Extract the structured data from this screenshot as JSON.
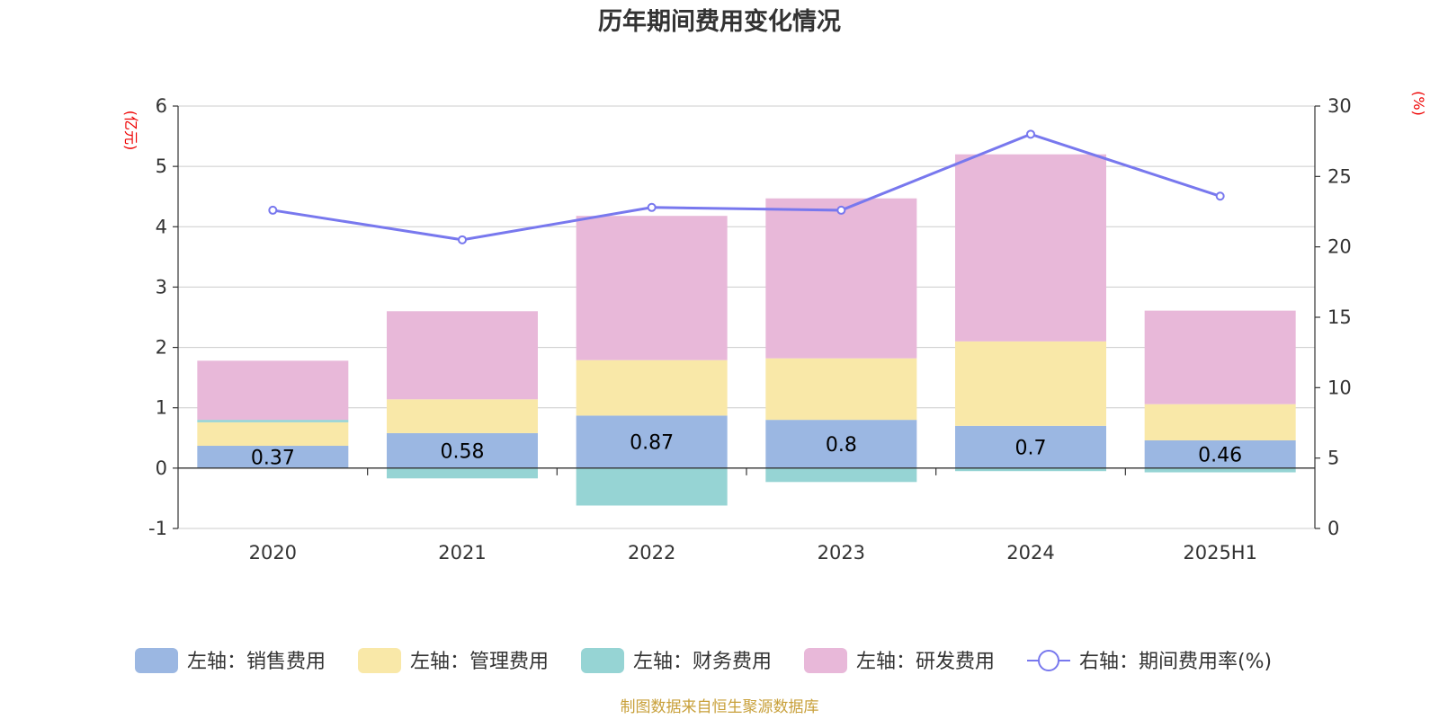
{
  "chart_data": {
    "type": "bar",
    "title": "历年期间费用变化情况",
    "categories": [
      "2020",
      "2021",
      "2022",
      "2023",
      "2024",
      "2025H1"
    ],
    "left_axis": {
      "unit_label": "(亿元)",
      "ylim": [
        -1,
        6
      ],
      "ticks": [
        -1,
        0,
        1,
        2,
        3,
        4,
        5,
        6
      ]
    },
    "right_axis": {
      "unit_label": "(%)",
      "ylim": [
        0,
        30
      ],
      "ticks": [
        0,
        5,
        10,
        15,
        20,
        25,
        30
      ]
    },
    "series": [
      {
        "name": "左轴：销售费用",
        "kind": "bar",
        "axis": "left",
        "color": "#9bb7e2",
        "values": [
          0.37,
          0.58,
          0.87,
          0.8,
          0.7,
          0.46
        ],
        "labels": [
          "0.37",
          "0.58",
          "0.87",
          "0.8",
          "0.7",
          "0.46"
        ]
      },
      {
        "name": "左轴：管理费用",
        "kind": "bar",
        "axis": "left",
        "color": "#f9e8a8",
        "values": [
          0.39,
          0.56,
          0.92,
          1.02,
          1.4,
          0.6
        ]
      },
      {
        "name": "左轴：财务费用",
        "kind": "bar",
        "axis": "left",
        "color": "#96d4d4",
        "values": [
          0.04,
          -0.17,
          -0.62,
          -0.23,
          -0.05,
          -0.07
        ]
      },
      {
        "name": "左轴：研发费用",
        "kind": "bar",
        "axis": "left",
        "color": "#e8b8d9",
        "values": [
          0.98,
          1.46,
          2.39,
          2.65,
          3.1,
          1.55
        ]
      },
      {
        "name": "右轴：期间费用率(%)",
        "kind": "line",
        "axis": "right",
        "color": "#7878ee",
        "values": [
          22.6,
          20.5,
          22.8,
          22.6,
          28.0,
          23.6
        ]
      }
    ],
    "grid": true,
    "legend_position": "bottom"
  },
  "source_note": "制图数据来自恒生聚源数据库"
}
